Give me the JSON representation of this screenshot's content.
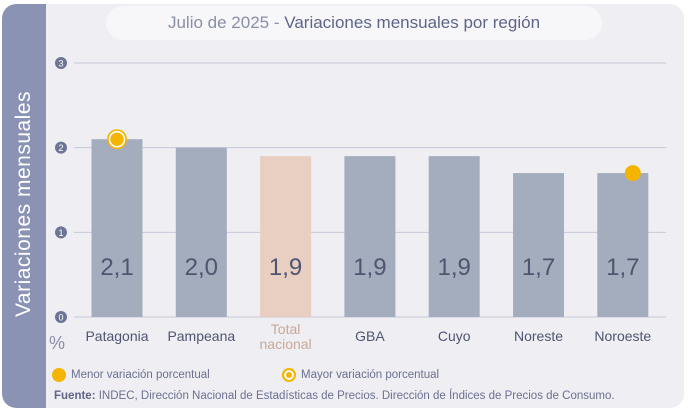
{
  "title": {
    "prefix": "Julio de 2025",
    "separator": "-",
    "main": "Variaciones mensuales por región"
  },
  "legend": {
    "min_label": "Menor variación porcentual",
    "max_label": "Mayor variación porcentual"
  },
  "source": {
    "label": "Fuente:",
    "text": "INDEC, Dirección Nacional de Estadísticas de Precios. Dirección de Índices de Precios de Consumo."
  },
  "colors": {
    "bar": "#a4adbd",
    "bar_highlight": "#e9cfc2",
    "marker": "#f4b400",
    "grid": "#c6c8d6",
    "band": "#8b93b5"
  },
  "chart_data": {
    "type": "bar",
    "title": "Julio de 2025 - Variaciones mensuales por región",
    "ylabel": "Variaciones mensuales",
    "yunit": "%",
    "ylim": [
      0,
      3
    ],
    "yticks": [
      "0",
      "1",
      "2",
      "3"
    ],
    "grid": true,
    "legend_position": "bottom-left",
    "categories": [
      "Patagonia",
      "Pampeana",
      "Total nacional",
      "GBA",
      "Cuyo",
      "Noreste",
      "Noroeste"
    ],
    "values": [
      2.1,
      2.0,
      1.9,
      1.9,
      1.9,
      1.7,
      1.7
    ],
    "value_labels": [
      "2,1",
      "2,0",
      "1,9",
      "1,9",
      "1,9",
      "1,7",
      "1,7"
    ],
    "highlight_category": "Total nacional",
    "max_category": "Patagonia",
    "min_category": "Noroeste"
  }
}
